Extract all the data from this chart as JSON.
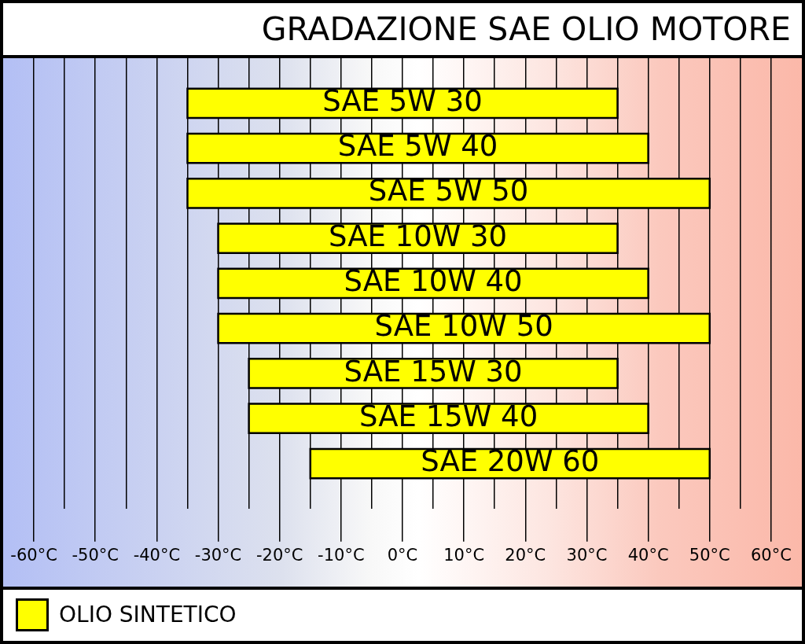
{
  "chart_data": {
    "type": "bar",
    "orientation": "horizontal",
    "title": "GRADAZIONE SAE OLIO MOTORE",
    "categories": [
      "SAE 5W 30",
      "SAE 5W 40",
      "SAE 5W 50",
      "SAE 10W 30",
      "SAE 10W 40",
      "SAE 10W 50",
      "SAE 15W 30",
      "SAE 15W 40",
      "SAE 20W 60"
    ],
    "series": [
      {
        "name": "OLIO SINTETICO",
        "color": "#ffff00",
        "values": [
          70,
          75,
          85,
          65,
          70,
          80,
          60,
          65,
          65
        ],
        "base": [
          -35,
          -35,
          -35,
          -30,
          -30,
          -30,
          -25,
          -25,
          -15
        ]
      }
    ],
    "xlim": [
      -65,
      65
    ],
    "xticks": [
      {
        "value": -60,
        "label": "-60°C"
      },
      {
        "value": -55,
        "label": null
      },
      {
        "value": -50,
        "label": "-50°C"
      },
      {
        "value": -45,
        "label": null
      },
      {
        "value": -40,
        "label": "-40°C"
      },
      {
        "value": -35,
        "label": null
      },
      {
        "value": -30,
        "label": "-30°C"
      },
      {
        "value": -25,
        "label": null
      },
      {
        "value": -20,
        "label": "-20°C"
      },
      {
        "value": -15,
        "label": null
      },
      {
        "value": -10,
        "label": "-10°C"
      },
      {
        "value": -5,
        "label": null
      },
      {
        "value": 0,
        "label": "0°C"
      },
      {
        "value": 5,
        "label": null
      },
      {
        "value": 10,
        "label": "10°C"
      },
      {
        "value": 15,
        "label": null
      },
      {
        "value": 20,
        "label": "20°C"
      },
      {
        "value": 25,
        "label": null
      },
      {
        "value": 30,
        "label": "30°C"
      },
      {
        "value": 35,
        "label": null
      },
      {
        "value": 40,
        "label": "40°C"
      },
      {
        "value": 45,
        "label": null
      },
      {
        "value": 50,
        "label": "50°C"
      },
      {
        "value": 55,
        "label": null
      },
      {
        "value": 60,
        "label": "60°C"
      }
    ],
    "grid": "x",
    "legend": "bottom",
    "tick_labels": "x"
  }
}
